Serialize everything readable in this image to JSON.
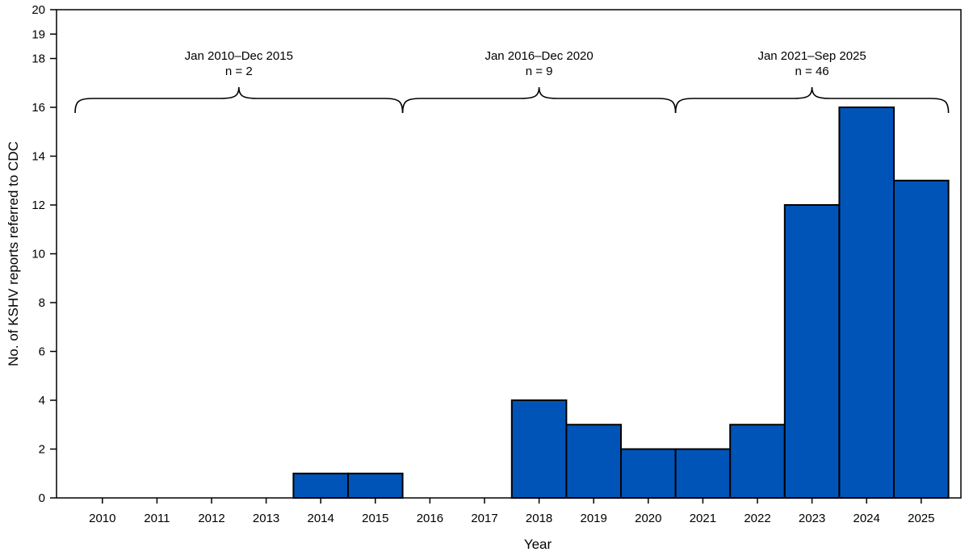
{
  "chart_data": {
    "type": "bar",
    "title": "",
    "xlabel": "Year",
    "ylabel": "No. of KSHV reports referred to CDC",
    "categories": [
      "2010",
      "2011",
      "2012",
      "2013",
      "2014",
      "2015",
      "2016",
      "2017",
      "2018",
      "2019",
      "2020",
      "2021",
      "2022",
      "2023",
      "2024",
      "2025"
    ],
    "values": [
      0,
      0,
      0,
      0,
      1,
      1,
      0,
      0,
      4,
      3,
      2,
      2,
      3,
      12,
      16,
      13
    ],
    "ylim": [
      0,
      20
    ],
    "yticks": [
      0,
      2,
      4,
      6,
      8,
      10,
      12,
      14,
      16,
      18,
      19,
      20
    ],
    "grid": false,
    "bar_color": "#0054b8",
    "edge_color": "#000000",
    "annotations": [
      {
        "period": "Jan 2010–Dec 2015",
        "count": "n = 2",
        "from": "2010",
        "to": "2015"
      },
      {
        "period": "Jan 2016–Dec 2020",
        "count": "n = 9",
        "from": "2016",
        "to": "2020"
      },
      {
        "period": "Jan 2021–Sep 2025",
        "count": "n = 46",
        "from": "2021",
        "to": "2025"
      }
    ]
  }
}
